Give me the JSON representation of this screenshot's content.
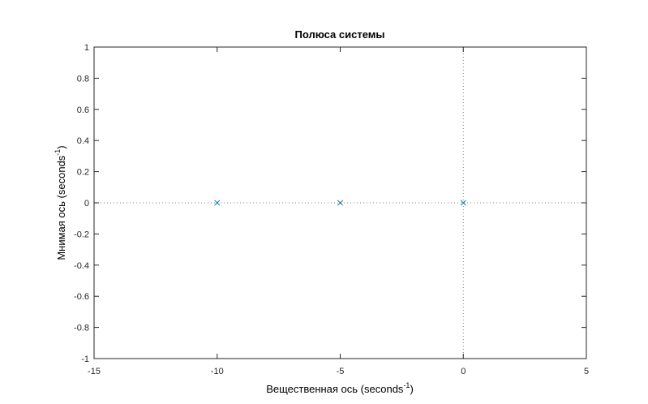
{
  "chart_data": {
    "type": "scatter",
    "title": "Полюса системы",
    "xlabel": "Вещественная ось",
    "ylabel": "Мнимая ось",
    "unit_base": "seconds",
    "unit_exp": "-1",
    "xlim": [
      -15,
      5
    ],
    "ylim": [
      -1,
      1
    ],
    "xticks": [
      "-15",
      "-10",
      "-5",
      "0",
      "5"
    ],
    "yticks": [
      "1",
      "0.8",
      "0.6",
      "0.4",
      "0.2",
      "0",
      "-0.2",
      "-0.4",
      "-0.6",
      "-0.8",
      "-1"
    ],
    "series": [
      {
        "name": "poles",
        "marker": "x",
        "points": [
          {
            "x": -10,
            "y": 0
          },
          {
            "x": -5,
            "y": 0
          },
          {
            "x": 0,
            "y": 0
          }
        ]
      }
    ],
    "colors": {
      "marker": "#0072BD",
      "axis": "#262626",
      "zero_line": "#7f7f7f"
    }
  }
}
